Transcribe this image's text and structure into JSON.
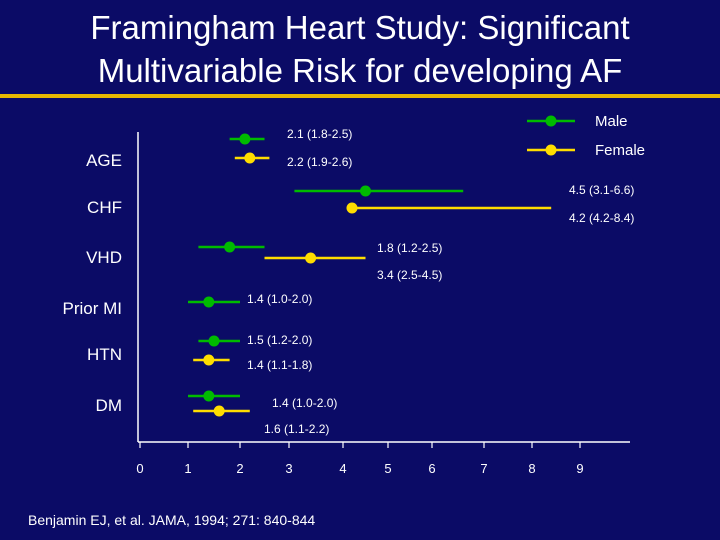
{
  "title_line1": "Framingham Heart Study: Significant",
  "title_line2": "Multivariable Risk for developing AF",
  "citation": "Benjamin EJ, et al. JAMA, 1994; 271: 840-844",
  "colors": {
    "background": "#0b0b66",
    "title_rule": "#e8b800",
    "male": "#00bb00",
    "female": "#ffdd00",
    "axis": "#ffffff"
  },
  "chart_data": {
    "type": "forest",
    "x_ticks": [
      "0",
      "1",
      "2",
      "3",
      "4",
      "5",
      "6",
      "7",
      "8",
      "9"
    ],
    "xlim": [
      0,
      9
    ],
    "legend_placement": "top-right",
    "series": [
      {
        "name": "Male",
        "color": "#00bb00"
      },
      {
        "name": "Female",
        "color": "#ffdd00"
      }
    ],
    "categories": [
      {
        "label": "AGE",
        "male": {
          "estimate": 2.1,
          "low": 1.8,
          "high": 2.5,
          "text": "2.1 (1.8-2.5)"
        },
        "female": {
          "estimate": 2.2,
          "low": 1.9,
          "high": 2.6,
          "text": "2.2 (1.9-2.6)"
        }
      },
      {
        "label": "CHF",
        "male": {
          "estimate": 4.5,
          "low": 3.1,
          "high": 6.6,
          "text": "4.5 (3.1-6.6)"
        },
        "female": {
          "estimate": 4.2,
          "low": 4.2,
          "high": 8.4,
          "text": "4.2 (4.2-8.4)"
        }
      },
      {
        "label": "VHD",
        "male": {
          "estimate": 1.8,
          "low": 1.2,
          "high": 2.5,
          "text": "1.8 (1.2-2.5)"
        },
        "female": {
          "estimate": 3.4,
          "low": 2.5,
          "high": 4.5,
          "text": "3.4 (2.5-4.5)"
        }
      },
      {
        "label": "Prior MI",
        "male": {
          "estimate": 1.4,
          "low": 1.0,
          "high": 2.0,
          "text": "1.4 (1.0-2.0)"
        },
        "female": null
      },
      {
        "label": "HTN",
        "male": {
          "estimate": 1.5,
          "low": 1.2,
          "high": 2.0,
          "text": "1.5 (1.2-2.0)"
        },
        "female": {
          "estimate": 1.4,
          "low": 1.1,
          "high": 1.8,
          "text": "1.4 (1.1-1.8)"
        }
      },
      {
        "label": "DM",
        "male": {
          "estimate": 1.4,
          "low": 1.0,
          "high": 2.0,
          "text": "1.4 (1.0-2.0)"
        },
        "female": {
          "estimate": 1.6,
          "low": 1.1,
          "high": 2.2,
          "text": "1.6 (1.1-2.2)"
        }
      }
    ]
  }
}
